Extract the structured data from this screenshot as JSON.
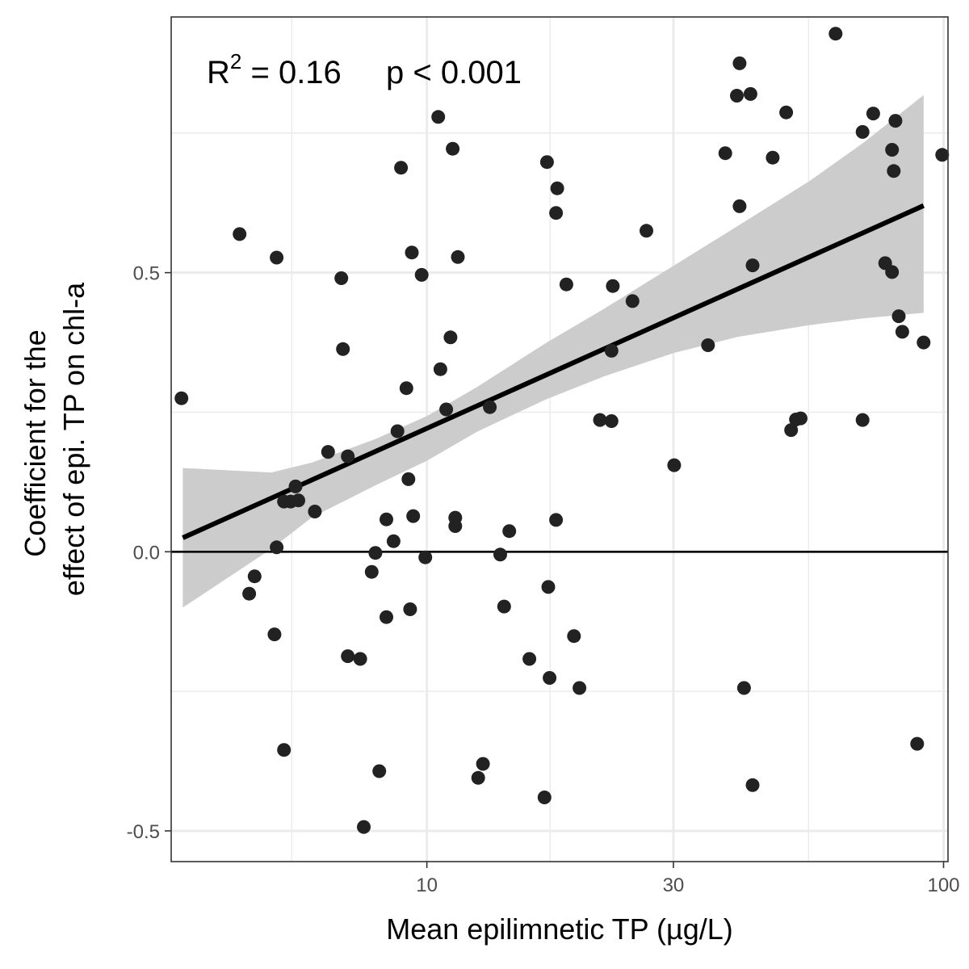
{
  "chart_data": {
    "type": "scatter",
    "xlabel": "Mean epilimnetic TP (µg/L)",
    "ylabel_lines": [
      "Coefficient for the",
      "effect of epi. TP on chl-a"
    ],
    "x_scale": "log10",
    "xlim": [
      3.2,
      102
    ],
    "ylim": [
      -0.555,
      0.958
    ],
    "x_ticks": [
      10,
      30,
      100
    ],
    "x_tick_labels": [
      "10",
      "30",
      "100"
    ],
    "y_ticks": [
      -0.5,
      0.0,
      0.5
    ],
    "y_tick_labels": [
      "-0.5",
      "0.0",
      "0.5"
    ],
    "grid": true,
    "annotation": {
      "r_label": "R",
      "r_superscript": "2",
      "r_value": " = 0.16",
      "p_label": "p < 0.001"
    },
    "colors": {
      "point": "#222222",
      "line": "#000000",
      "ribbon": "#cccccc",
      "grid": "#ebebeb",
      "panel_border": "#333333"
    },
    "hline_y": 0.0,
    "fit_line": {
      "x": [
        3.37,
        91.5
      ],
      "y": [
        0.025,
        0.62
      ]
    },
    "confidence_band": {
      "x": [
        3.37,
        5.0,
        6.0,
        8.0,
        10.0,
        12.5,
        17.0,
        22.0,
        30.0,
        40.0,
        55.0,
        70.0,
        91.5
      ],
      "lower": [
        -0.1,
        0.005,
        0.062,
        0.12,
        0.163,
        0.215,
        0.273,
        0.314,
        0.356,
        0.385,
        0.406,
        0.418,
        0.428
      ],
      "upper": [
        0.15,
        0.142,
        0.16,
        0.203,
        0.243,
        0.295,
        0.374,
        0.435,
        0.512,
        0.584,
        0.664,
        0.733,
        0.818
      ]
    },
    "points": [
      {
        "x": 3.35,
        "y": 0.275
      },
      {
        "x": 4.34,
        "y": 0.569
      },
      {
        "x": 5.12,
        "y": 0.527
      },
      {
        "x": 5.12,
        "y": 0.008
      },
      {
        "x": 4.64,
        "y": -0.044
      },
      {
        "x": 4.53,
        "y": -0.075
      },
      {
        "x": 5.07,
        "y": -0.148
      },
      {
        "x": 5.29,
        "y": -0.355
      },
      {
        "x": 5.29,
        "y": 0.09
      },
      {
        "x": 5.45,
        "y": 0.09
      },
      {
        "x": 5.64,
        "y": 0.092
      },
      {
        "x": 5.57,
        "y": 0.117
      },
      {
        "x": 6.07,
        "y": 0.072
      },
      {
        "x": 6.44,
        "y": 0.179
      },
      {
        "x": 6.83,
        "y": 0.49
      },
      {
        "x": 6.88,
        "y": 0.363
      },
      {
        "x": 7.03,
        "y": 0.171
      },
      {
        "x": 7.03,
        "y": -0.187
      },
      {
        "x": 7.43,
        "y": -0.192
      },
      {
        "x": 7.55,
        "y": -0.493
      },
      {
        "x": 7.82,
        "y": -0.036
      },
      {
        "x": 7.95,
        "y": -0.002
      },
      {
        "x": 8.09,
        "y": -0.393
      },
      {
        "x": 8.35,
        "y": 0.058
      },
      {
        "x": 8.35,
        "y": -0.117
      },
      {
        "x": 8.62,
        "y": 0.019
      },
      {
        "x": 8.77,
        "y": 0.216
      },
      {
        "x": 8.91,
        "y": 0.688
      },
      {
        "x": 9.13,
        "y": 0.293
      },
      {
        "x": 9.21,
        "y": 0.13
      },
      {
        "x": 9.35,
        "y": 0.536
      },
      {
        "x": 9.41,
        "y": 0.064
      },
      {
        "x": 9.28,
        "y": -0.103
      },
      {
        "x": 9.77,
        "y": 0.496
      },
      {
        "x": 9.93,
        "y": -0.01
      },
      {
        "x": 10.52,
        "y": 0.779
      },
      {
        "x": 10.62,
        "y": 0.327
      },
      {
        "x": 10.9,
        "y": 0.255
      },
      {
        "x": 11.11,
        "y": 0.384
      },
      {
        "x": 11.22,
        "y": 0.722
      },
      {
        "x": 11.35,
        "y": 0.061
      },
      {
        "x": 11.35,
        "y": 0.046
      },
      {
        "x": 11.48,
        "y": 0.528
      },
      {
        "x": 12.84,
        "y": -0.38
      },
      {
        "x": 12.57,
        "y": -0.405
      },
      {
        "x": 13.24,
        "y": 0.259
      },
      {
        "x": 13.87,
        "y": -0.005
      },
      {
        "x": 14.11,
        "y": -0.098
      },
      {
        "x": 14.44,
        "y": 0.037
      },
      {
        "x": 15.79,
        "y": -0.192
      },
      {
        "x": 17.08,
        "y": 0.698
      },
      {
        "x": 17.18,
        "y": -0.063
      },
      {
        "x": 17.28,
        "y": -0.226
      },
      {
        "x": 16.89,
        "y": -0.44
      },
      {
        "x": 17.78,
        "y": 0.607
      },
      {
        "x": 17.88,
        "y": 0.651
      },
      {
        "x": 17.78,
        "y": 0.057
      },
      {
        "x": 18.62,
        "y": 0.479
      },
      {
        "x": 19.26,
        "y": -0.151
      },
      {
        "x": 19.74,
        "y": -0.244
      },
      {
        "x": 21.63,
        "y": 0.236
      },
      {
        "x": 22.77,
        "y": 0.234
      },
      {
        "x": 22.77,
        "y": 0.36
      },
      {
        "x": 22.9,
        "y": 0.476
      },
      {
        "x": 25.0,
        "y": 0.449
      },
      {
        "x": 26.6,
        "y": 0.575
      },
      {
        "x": 30.1,
        "y": 0.155
      },
      {
        "x": 35.0,
        "y": 0.37
      },
      {
        "x": 37.8,
        "y": 0.714
      },
      {
        "x": 39.8,
        "y": 0.817
      },
      {
        "x": 40.3,
        "y": 0.875
      },
      {
        "x": 40.3,
        "y": 0.619
      },
      {
        "x": 41.1,
        "y": -0.244
      },
      {
        "x": 42.3,
        "y": 0.82
      },
      {
        "x": 42.7,
        "y": 0.513
      },
      {
        "x": 42.7,
        "y": -0.418
      },
      {
        "x": 46.7,
        "y": 0.706
      },
      {
        "x": 49.6,
        "y": 0.787
      },
      {
        "x": 50.7,
        "y": 0.218
      },
      {
        "x": 51.8,
        "y": 0.237
      },
      {
        "x": 52.9,
        "y": 0.239
      },
      {
        "x": 61.8,
        "y": 0.928
      },
      {
        "x": 69.7,
        "y": 0.752
      },
      {
        "x": 69.7,
        "y": 0.236
      },
      {
        "x": 73.1,
        "y": 0.785
      },
      {
        "x": 79.5,
        "y": 0.72
      },
      {
        "x": 80.1,
        "y": 0.682
      },
      {
        "x": 80.7,
        "y": 0.772
      },
      {
        "x": 77.1,
        "y": 0.517
      },
      {
        "x": 79.5,
        "y": 0.501
      },
      {
        "x": 81.9,
        "y": 0.422
      },
      {
        "x": 83.2,
        "y": 0.394
      },
      {
        "x": 99.4,
        "y": 0.711
      },
      {
        "x": 91.5,
        "y": 0.375
      },
      {
        "x": 88.9,
        "y": -0.344
      }
    ]
  }
}
